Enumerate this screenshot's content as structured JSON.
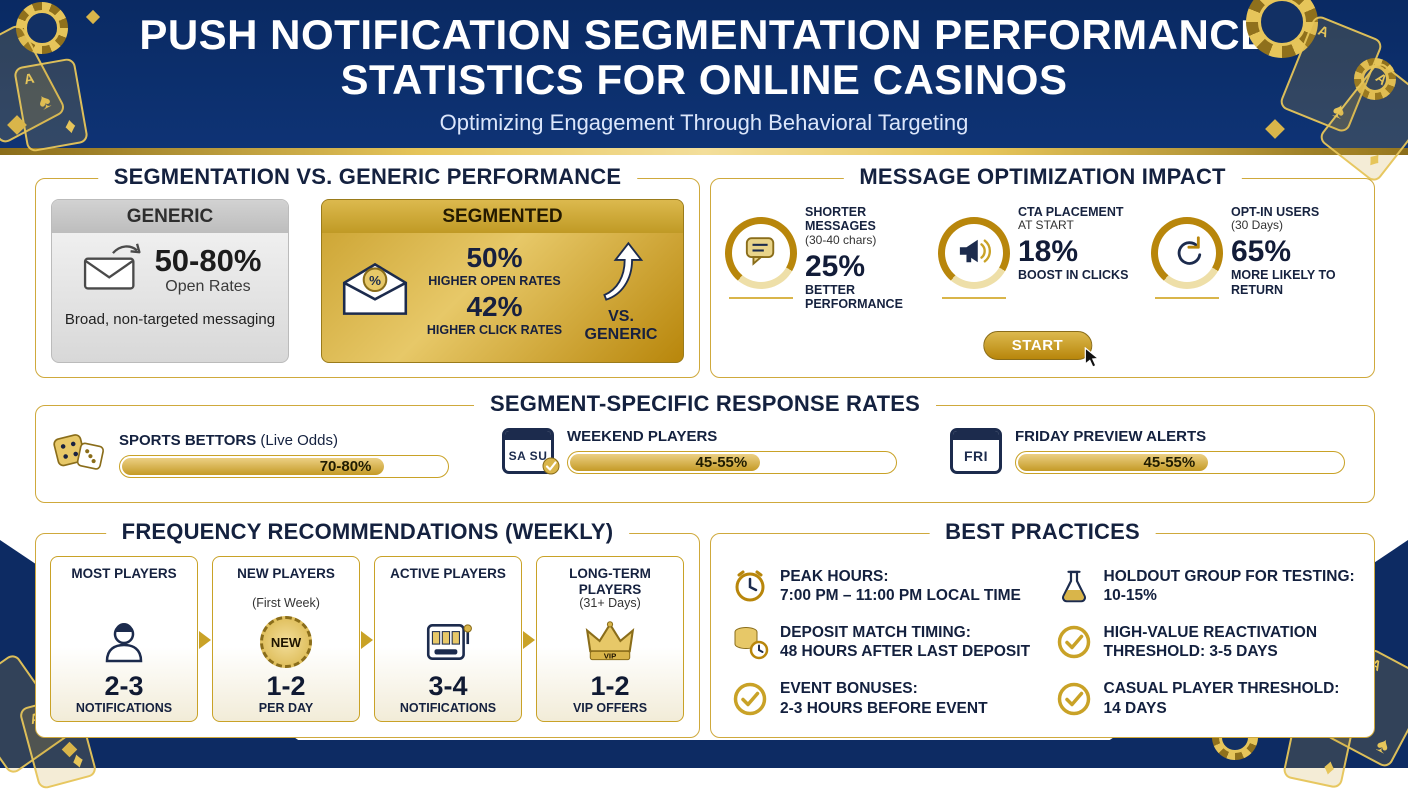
{
  "colors": {
    "navy": "#0d2b63",
    "gold": "#c9a227",
    "gold_dark": "#8a6d1a",
    "gold_light": "#e9d48a",
    "text_dark": "#14213f"
  },
  "deco": {
    "ace": "A",
    "spade": "♠",
    "diamond": "♦"
  },
  "header": {
    "title_line1": "PUSH NOTIFICATION SEGMENTATION PERFORMANCE",
    "title_line2": "STATISTICS FOR ONLINE CASINOS",
    "subtitle": "Optimizing Engagement Through Behavioral Targeting"
  },
  "comparison": {
    "title": "SEGMENTATION VS. GENERIC PERFORMANCE",
    "generic": {
      "label": "GENERIC",
      "value": "50-80%",
      "value_label": "Open Rates",
      "caption": "Broad, non-targeted messaging",
      "icon": "envelope-arrow-icon"
    },
    "segmented": {
      "label": "SEGMENTED",
      "stat1_value": "50%",
      "stat1_label": "HIGHER OPEN RATES",
      "stat2_value": "42%",
      "stat2_label": "HIGHER CLICK RATES",
      "vs_label": "VS. GENERIC",
      "icon": "envelope-seal-icon"
    }
  },
  "optimization": {
    "title": "MESSAGE OPTIMIZATION IMPACT",
    "start_label": "START",
    "items": [
      {
        "heading": "SHORTER MESSAGES",
        "subheading": "(30-40 chars)",
        "value": "25%",
        "description": "BETTER PERFORMANCE",
        "icon": "chat-bubble-icon"
      },
      {
        "heading": "CTA PLACEMENT",
        "subheading": "AT START",
        "value": "18%",
        "description": "BOOST IN CLICKS",
        "icon": "megaphone-icon"
      },
      {
        "heading": "OPT-IN USERS",
        "subheading": "(30 Days)",
        "value": "65%",
        "description": "MORE LIKELY TO RETURN",
        "icon": "return-arrow-icon"
      }
    ]
  },
  "response_rates": {
    "title": "SEGMENT-SPECIFIC RESPONSE RATES",
    "items": [
      {
        "label": "SPORTS BETTORS",
        "sublabel": "(Live Odds)",
        "value": "70-80%",
        "fill_percent": 80,
        "icon": "dice-icon"
      },
      {
        "label": "WEEKEND PLAYERS",
        "sublabel": "",
        "value": "45-55%",
        "fill_percent": 58,
        "icon": "weekend-calendar-icon",
        "icon_text": "SA SU"
      },
      {
        "label": "FRIDAY PREVIEW ALERTS",
        "sublabel": "",
        "value": "45-55%",
        "fill_percent": 58,
        "icon": "friday-calendar-icon",
        "icon_text": "FRI"
      }
    ]
  },
  "frequency": {
    "title": "FREQUENCY RECOMMENDATIONS (WEEKLY)",
    "cards": [
      {
        "heading": "MOST PLAYERS",
        "subheading": "",
        "value": "2-3",
        "unit": "NOTIFICATIONS",
        "icon": "player-icon"
      },
      {
        "heading": "NEW PLAYERS",
        "subheading": "(First Week)",
        "value": "1-2",
        "unit": "PER DAY",
        "icon": "new-badge-icon",
        "badge_text": "NEW"
      },
      {
        "heading": "ACTIVE PLAYERS",
        "subheading": "",
        "value": "3-4",
        "unit": "NOTIFICATIONS",
        "icon": "slot-machine-icon"
      },
      {
        "heading": "LONG-TERM PLAYERS",
        "subheading": "(31+ Days)",
        "value": "1-2",
        "unit": "VIP OFFERS",
        "icon": "vip-crown-icon",
        "badge_text": "VIP"
      }
    ]
  },
  "best_practices": {
    "title": "BEST PRACTICES",
    "items": [
      {
        "line1": "PEAK HOURS:",
        "line2": "7:00 PM – 11:00 PM LOCAL TIME",
        "icon": "clock-icon"
      },
      {
        "line1": "DEPOSIT MATCH TIMING:",
        "line2": "48 HOURS AFTER LAST DEPOSIT",
        "icon": "coins-icon"
      },
      {
        "line1": "EVENT BONUSES:",
        "line2": "2-3 HOURS BEFORE EVENT",
        "icon": "check-circle-icon"
      },
      {
        "line1": "HOLDOUT GROUP FOR TESTING:",
        "line2": "10-15%",
        "icon": "flask-icon"
      },
      {
        "line1": "HIGH-VALUE REACTIVATION",
        "line2": "THRESHOLD: 3-5 DAYS",
        "icon": "check-circle-icon"
      },
      {
        "line1": "CASUAL PLAYER THRESHOLD:",
        "line2": "14 DAYS",
        "icon": "check-circle-icon"
      }
    ]
  }
}
